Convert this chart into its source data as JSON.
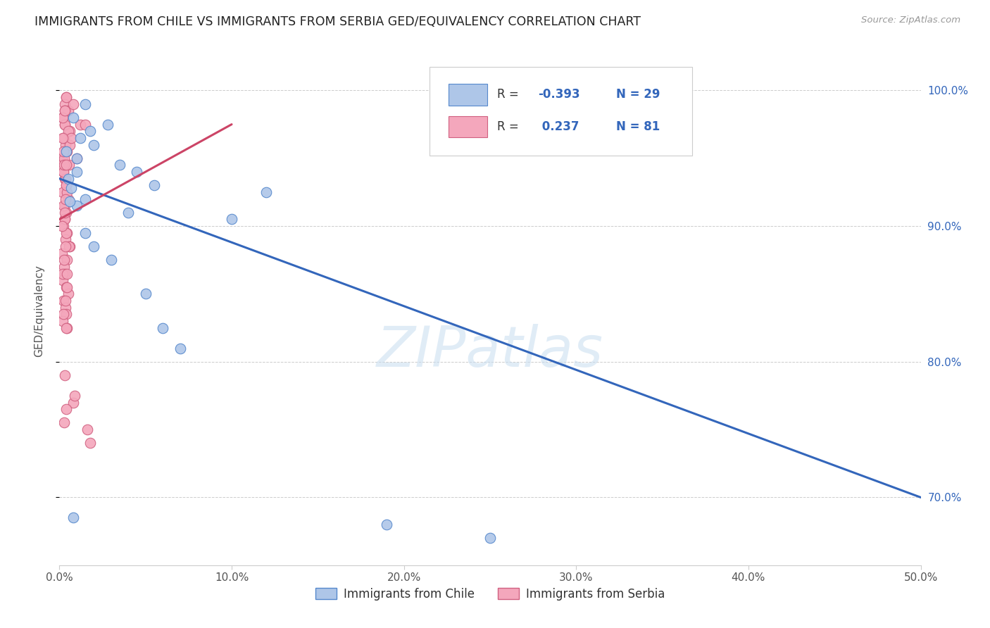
{
  "title": "IMMIGRANTS FROM CHILE VS IMMIGRANTS FROM SERBIA GED/EQUIVALENCY CORRELATION CHART",
  "source": "Source: ZipAtlas.com",
  "ylabel": "GED/Equivalency",
  "xlim": [
    0.0,
    50.0
  ],
  "ylim": [
    65.0,
    102.5
  ],
  "xticks": [
    0,
    10,
    20,
    30,
    40,
    50
  ],
  "xticklabels": [
    "0.0%",
    "10.0%",
    "20.0%",
    "30.0%",
    "40.0%",
    "50.0%"
  ],
  "yticks": [
    70.0,
    80.0,
    90.0,
    100.0
  ],
  "right_yticklabels": [
    "70.0%",
    "80.0%",
    "90.0%",
    "100.0%"
  ],
  "chile_color": "#aec6e8",
  "serbia_color": "#f4a7bc",
  "chile_edge": "#5588cc",
  "serbia_edge": "#d06080",
  "chile_line_color": "#3366bb",
  "serbia_line_color": "#cc4466",
  "watermark": "ZIPatlas",
  "legend_chile_label": "Immigrants from Chile",
  "legend_serbia_label": "Immigrants from Serbia",
  "chile_x": [
    1.5,
    2.8,
    0.8,
    1.2,
    1.0,
    3.5,
    2.0,
    4.5,
    1.8,
    5.5,
    4.0,
    12.0,
    10.0,
    1.5,
    3.0,
    5.0,
    0.5,
    0.7,
    1.0,
    7.0,
    6.0,
    1.5,
    2.0,
    0.6,
    19.0,
    25.0,
    0.8,
    1.0,
    0.4
  ],
  "chile_y": [
    99.0,
    97.5,
    98.0,
    96.5,
    95.0,
    94.5,
    96.0,
    94.0,
    97.0,
    93.0,
    91.0,
    92.5,
    90.5,
    92.0,
    87.5,
    85.0,
    93.5,
    92.8,
    91.5,
    81.0,
    82.5,
    89.5,
    88.5,
    91.8,
    68.0,
    67.0,
    68.5,
    94.0,
    95.5
  ],
  "serbia_x": [
    0.4,
    0.3,
    0.5,
    0.2,
    0.3,
    0.6,
    0.25,
    0.35,
    0.45,
    0.15,
    0.55,
    0.25,
    0.3,
    0.4,
    0.2,
    0.5,
    0.3,
    0.4,
    0.3,
    0.25,
    0.45,
    0.35,
    0.6,
    0.15,
    0.45,
    0.28,
    0.32,
    0.2,
    0.4,
    0.5,
    0.25,
    0.35,
    0.4,
    0.2,
    0.45,
    0.3,
    0.28,
    0.4,
    0.15,
    0.35,
    0.45,
    0.25,
    0.32,
    0.4,
    0.55,
    0.28,
    0.2,
    0.45,
    0.35,
    0.25,
    0.4,
    0.3,
    0.2,
    0.5,
    0.28,
    0.25,
    0.4,
    0.35,
    0.3,
    0.15,
    0.8,
    0.6,
    1.0,
    1.2,
    0.7,
    0.25,
    0.28,
    0.35,
    0.45,
    0.4,
    0.32,
    1.5,
    0.2,
    0.4,
    0.3,
    0.8,
    0.9,
    1.6,
    1.8,
    0.28,
    0.4
  ],
  "serbia_y": [
    99.5,
    99.0,
    98.5,
    98.0,
    97.5,
    97.0,
    96.5,
    96.0,
    95.5,
    95.0,
    94.5,
    94.0,
    93.5,
    93.0,
    92.5,
    92.0,
    91.5,
    91.0,
    90.5,
    90.0,
    89.5,
    89.0,
    88.5,
    88.0,
    87.5,
    87.0,
    86.5,
    86.0,
    85.5,
    85.0,
    84.5,
    84.0,
    83.5,
    83.0,
    82.5,
    97.5,
    96.5,
    95.5,
    94.5,
    93.5,
    92.5,
    91.5,
    90.5,
    89.5,
    88.5,
    87.5,
    86.5,
    85.5,
    84.5,
    83.5,
    82.5,
    98.5,
    98.0,
    97.0,
    95.0,
    94.0,
    93.0,
    92.0,
    91.0,
    90.0,
    99.0,
    96.0,
    95.0,
    97.5,
    96.5,
    95.5,
    94.5,
    88.5,
    86.5,
    99.5,
    98.5,
    97.5,
    96.5,
    94.5,
    79.0,
    77.0,
    77.5,
    75.0,
    74.0,
    75.5,
    76.5
  ],
  "chile_trend_x": [
    0.0,
    50.0
  ],
  "chile_trend_y": [
    93.5,
    70.0
  ],
  "serbia_trend_x": [
    0.0,
    10.0
  ],
  "serbia_trend_y": [
    90.5,
    97.5
  ]
}
